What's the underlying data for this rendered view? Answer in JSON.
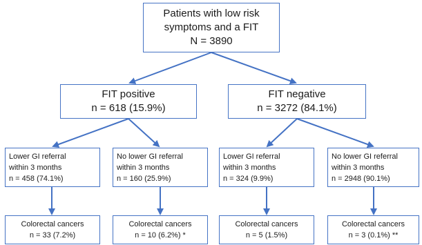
{
  "accent_color": "#4472c4",
  "root": {
    "line1": "Patients with low risk",
    "line2": "symptoms and a FIT",
    "line3": "N = 3890"
  },
  "fit_positive": {
    "title": "FIT positive",
    "count": "n = 618 (15.9%)"
  },
  "fit_negative": {
    "title": "FIT negative",
    "count": "n = 3272 (84.1%)"
  },
  "pos_referral": {
    "line1": "Lower GI referral",
    "line2": "within 3 months",
    "count": "n = 458 (74.1%)"
  },
  "pos_no_referral": {
    "line1": "No lower GI referral",
    "line2": "within 3 months",
    "count": "n = 160 (25.9%)"
  },
  "neg_referral": {
    "line1": "Lower GI referral",
    "line2": "within 3 months",
    "count": "n = 324 (9.9%)"
  },
  "neg_no_referral": {
    "line1": "No lower GI referral",
    "line2": "within 3 months",
    "count": "n = 2948 (90.1%)"
  },
  "outcome_1": {
    "title": "Colorectal cancers",
    "count": "n = 33 (7.2%)"
  },
  "outcome_2": {
    "title": "Colorectal cancers",
    "count": "n = 10 (6.2%) *"
  },
  "outcome_3": {
    "title": "Colorectal cancers",
    "count": "n = 5 (1.5%)"
  },
  "outcome_4": {
    "title": "Colorectal cancers",
    "count": "n = 3 (0.1%) **"
  }
}
